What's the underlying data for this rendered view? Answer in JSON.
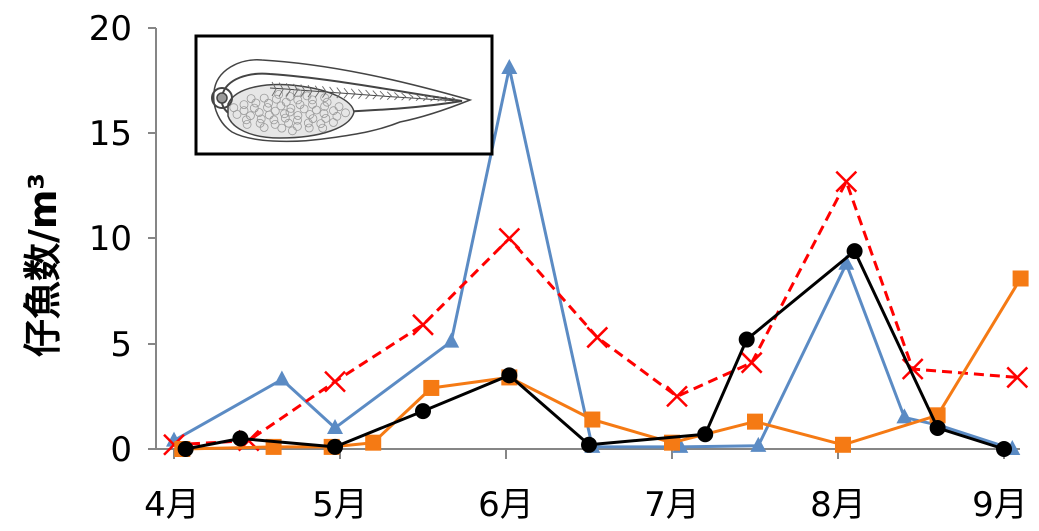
{
  "chart_data": {
    "type": "line",
    "title": "",
    "xlabel": "",
    "ylabel": "仔魚数/m³",
    "ylim": [
      0,
      20
    ],
    "yticks": [
      "0",
      "5",
      "10",
      "15",
      "20"
    ],
    "xticks": [
      "4月",
      "5月",
      "6月",
      "7月",
      "8月",
      "9月"
    ],
    "xrange": [
      4,
      9
    ],
    "grid": false,
    "legend": "none",
    "inset": "larval fish drawing (top-left)",
    "series": [
      {
        "color": "#5B8BC4",
        "marker": "triangle",
        "dash": "solid",
        "points": [
          [
            4.0,
            0.4
          ],
          [
            4.65,
            3.3
          ],
          [
            4.97,
            1.0
          ],
          [
            5.67,
            5.1
          ],
          [
            6.02,
            18.1
          ],
          [
            6.52,
            0.1
          ],
          [
            7.05,
            0.1
          ],
          [
            7.52,
            0.15
          ],
          [
            8.05,
            8.8
          ],
          [
            8.4,
            1.5
          ],
          [
            8.62,
            1.1
          ],
          [
            9.05,
            0.0
          ]
        ]
      },
      {
        "color": "#FF0000",
        "marker": "x",
        "dash": "dashed",
        "points": [
          [
            4.0,
            0.2
          ],
          [
            4.45,
            0.4
          ],
          [
            4.97,
            3.2
          ],
          [
            5.5,
            5.9
          ],
          [
            6.02,
            10.0
          ],
          [
            6.55,
            5.3
          ],
          [
            7.03,
            2.5
          ],
          [
            7.48,
            4.1
          ],
          [
            8.05,
            12.7
          ],
          [
            8.45,
            3.8
          ],
          [
            9.08,
            3.4
          ]
        ]
      },
      {
        "color": "#F57A14",
        "marker": "square",
        "dash": "solid",
        "points": [
          [
            4.05,
            0.0
          ],
          [
            4.6,
            0.1
          ],
          [
            4.95,
            0.1
          ],
          [
            5.2,
            0.3
          ],
          [
            5.55,
            2.9
          ],
          [
            6.02,
            3.4
          ],
          [
            6.52,
            1.4
          ],
          [
            7.0,
            0.3
          ],
          [
            7.5,
            1.3
          ],
          [
            8.03,
            0.2
          ],
          [
            8.6,
            1.6
          ],
          [
            9.1,
            8.1
          ]
        ]
      },
      {
        "color": "#000000",
        "marker": "circle",
        "dash": "solid",
        "points": [
          [
            4.07,
            0.0
          ],
          [
            4.4,
            0.5
          ],
          [
            4.97,
            0.1
          ],
          [
            5.5,
            1.8
          ],
          [
            6.02,
            3.5
          ],
          [
            6.5,
            0.2
          ],
          [
            7.2,
            0.7
          ],
          [
            7.45,
            5.2
          ],
          [
            8.1,
            9.4
          ],
          [
            8.6,
            1.0
          ],
          [
            9.0,
            0.0
          ]
        ]
      }
    ]
  }
}
